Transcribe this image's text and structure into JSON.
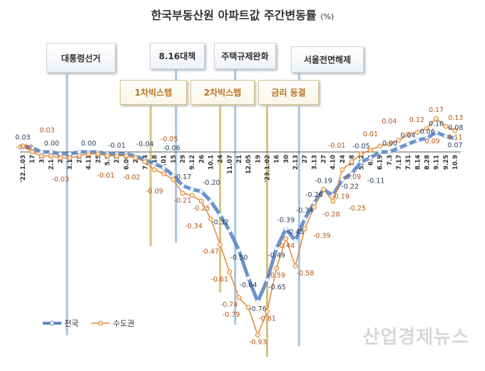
{
  "chart_data": {
    "type": "line",
    "title": "한국부동산원 아파트값 주간변동률",
    "unit": "(%)",
    "categories": [
      "'22.1.03",
      "17",
      "31",
      "2.14",
      "28",
      "3.14",
      "28",
      "4.11",
      "25",
      "5.9",
      "23",
      "6.06",
      "20",
      "7.04",
      "18",
      "8.01",
      "15",
      "29",
      "9.12",
      "26",
      "10.1",
      "24",
      "11.07",
      "21",
      "12.05",
      "19",
      "'23.1.02",
      "16",
      "30",
      "2.13",
      "27",
      "3.13",
      "27",
      "4.10",
      "24",
      "5.8",
      "5.22",
      "6.5",
      "6.19",
      "7.3",
      "7.17",
      "7.31",
      "8.14",
      "8.28",
      "9.11",
      "9.25",
      "10.9"
    ],
    "series": [
      {
        "name": "전국",
        "color": "#5b87c5",
        "values": [
          0.03,
          0.02,
          0.0,
          0.0,
          -0.01,
          -0.01,
          0.0,
          0.0,
          0.0,
          -0.01,
          -0.01,
          -0.01,
          -0.02,
          -0.04,
          -0.06,
          -0.08,
          -0.12,
          -0.17,
          -0.19,
          -0.2,
          -0.25,
          -0.32,
          -0.4,
          -0.5,
          -0.64,
          -0.76,
          -0.65,
          -0.49,
          -0.39,
          -0.45,
          -0.34,
          -0.26,
          -0.19,
          -0.22,
          -0.14,
          -0.11,
          -0.05,
          -0.03,
          0.0,
          0.0,
          0.02,
          0.04,
          0.06,
          0.07,
          0.1,
          0.08,
          0.07
        ],
        "labeled_points": [
          0,
          2,
          7,
          10,
          13,
          14,
          17,
          19,
          21,
          23,
          24,
          25,
          26,
          27,
          28,
          29,
          30,
          31,
          32,
          33,
          35,
          36,
          38,
          41,
          42,
          44,
          45,
          46
        ]
      },
      {
        "name": "수도권",
        "color": "#e08a3c",
        "values": [
          0.03,
          0.0,
          -0.02,
          -0.02,
          -0.03,
          -0.03,
          -0.02,
          -0.01,
          -0.01,
          -0.02,
          -0.02,
          -0.02,
          -0.03,
          -0.05,
          -0.09,
          -0.11,
          -0.14,
          -0.21,
          -0.22,
          -0.25,
          -0.34,
          -0.47,
          -0.61,
          -0.74,
          -0.79,
          -0.93,
          -0.81,
          -0.59,
          -0.44,
          -0.58,
          -0.39,
          -0.28,
          -0.19,
          -0.25,
          -0.09,
          -0.05,
          -0.01,
          0.01,
          0.03,
          0.04,
          0.06,
          0.09,
          0.1,
          0.12,
          0.17,
          0.13,
          0.11
        ],
        "labeled_points": [
          0,
          2,
          4,
          7,
          9,
          13,
          14,
          17,
          19,
          20,
          21,
          22,
          23,
          24,
          25,
          26,
          27,
          28,
          29,
          30,
          31,
          32,
          33,
          34,
          36,
          37,
          39,
          41,
          43,
          44,
          45,
          46
        ]
      }
    ],
    "ylim": [
      -0.95,
      0.2
    ],
    "grid": false,
    "legend": "bottom-left",
    "annotations": [
      {
        "text": "대통령선거",
        "category": "3.14",
        "offset": -0.3,
        "kind": "policy",
        "color": "#a9c4de"
      },
      {
        "text": "8.16대책",
        "category": "15",
        "offset": 0.3,
        "kind": "policy",
        "color": "#a9c4de"
      },
      {
        "text": "주택규제완화",
        "category": "11.07",
        "offset": 0.6,
        "kind": "policy",
        "color": "#a9c4de"
      },
      {
        "text": "서울전면해제",
        "category": "2.13",
        "offset": 0.4,
        "kind": "policy",
        "color": "#a9c4de"
      },
      {
        "text": "1차빅스텝",
        "category": "7.04",
        "offset": 0.6,
        "kind": "rate",
        "color": "#d6c37e"
      },
      {
        "text": "2차빅스텝",
        "category": "24",
        "offset": 0,
        "kind": "rate",
        "color": "#d6c37e"
      },
      {
        "text": "금리 동결",
        "category": "'23.1.02",
        "offset": 0,
        "kind": "rate",
        "color": "#d6c37e"
      }
    ]
  },
  "watermark": "산업경제뉴스"
}
